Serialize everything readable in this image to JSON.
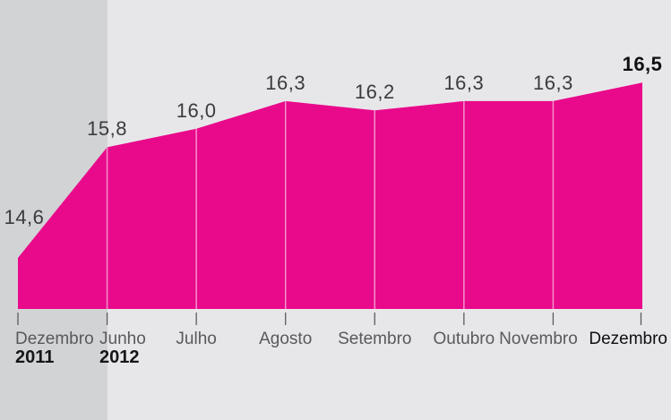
{
  "chart_data": {
    "type": "area",
    "title": "",
    "x_labels": [
      "Dezembro",
      "Junho",
      "Julho",
      "Agosto",
      "Setembro",
      "Outubro",
      "Novembro",
      "Dezembro"
    ],
    "x_sublabels": [
      "2011",
      "2012",
      "",
      "",
      "",
      "",
      "",
      ""
    ],
    "values": [
      14.6,
      15.8,
      16.0,
      16.3,
      16.2,
      16.3,
      16.3,
      16.5
    ],
    "value_labels": [
      "14,6",
      "15,8",
      "16,0",
      "16,3",
      "16,2",
      "16,3",
      "16,3",
      "16,5"
    ],
    "decimal_style": "comma",
    "highlight_last_point": true,
    "shaded_band_range": [
      "Dezembro 2011",
      "Junho 2012"
    ],
    "legend": null,
    "grid": false,
    "colors": {
      "area": "#e9098b",
      "background": "#e7e7e9",
      "band": "#d2d3d5",
      "separator_line": "rgba(255,255,255,0.55)",
      "tick": "#5b5b5f",
      "value_text": "#3b3b3d",
      "month_text": "#59595b",
      "emphasis_text": "#101012",
      "year_text": "#161618"
    }
  }
}
